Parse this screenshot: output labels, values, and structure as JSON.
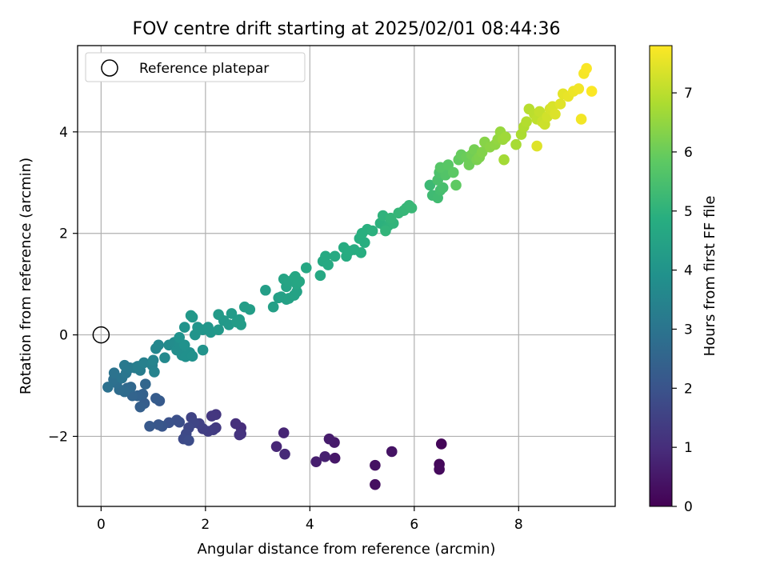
{
  "chart_data": {
    "type": "scatter",
    "title": "FOV centre drift starting at 2025/02/01 08:44:36",
    "xlabel": "Angular distance from reference (arcmin)",
    "ylabel": "Rotation from reference (arcmin)",
    "xlim": [
      -0.45,
      9.85
    ],
    "ylim": [
      -3.38,
      5.7
    ],
    "xticks": [
      0,
      2,
      4,
      6,
      8
    ],
    "yticks": [
      -2,
      0,
      2,
      4
    ],
    "ytick_labels": [
      "−2",
      "0",
      "2",
      "4"
    ],
    "grid": true,
    "colorbar": {
      "label": "Hours from first FF file",
      "colormap": "viridis",
      "range": [
        0,
        7.8
      ],
      "ticks": [
        0,
        1,
        2,
        3,
        4,
        5,
        6,
        7
      ]
    },
    "legend": {
      "position": "top-left",
      "entries": [
        {
          "label": "Reference platepar",
          "marker": "open-circle"
        }
      ]
    },
    "reference_point": {
      "x": 0,
      "y": 0
    },
    "colors": {
      "reference_marker": "#000000",
      "grid": "#b0b0b0"
    },
    "points": [
      [
        6.52,
        -2.15,
        0.1
      ],
      [
        6.48,
        -2.55,
        0.15
      ],
      [
        6.48,
        -2.65,
        0.2
      ],
      [
        5.25,
        -2.95,
        0.3
      ],
      [
        5.25,
        -2.57,
        0.35
      ],
      [
        5.57,
        -2.3,
        0.4
      ],
      [
        4.48,
        -2.43,
        0.5
      ],
      [
        4.47,
        -2.12,
        0.55
      ],
      [
        4.37,
        -2.05,
        0.6
      ],
      [
        4.12,
        -2.5,
        0.65
      ],
      [
        4.29,
        -2.4,
        0.7
      ],
      [
        3.5,
        -1.93,
        0.8
      ],
      [
        3.36,
        -2.2,
        0.85
      ],
      [
        3.52,
        -2.35,
        0.9
      ],
      [
        2.68,
        -1.83,
        1.0
      ],
      [
        2.58,
        -1.75,
        1.05
      ],
      [
        2.68,
        -1.95,
        1.1
      ],
      [
        2.65,
        -1.97,
        1.15
      ],
      [
        2.2,
        -1.57,
        1.2
      ],
      [
        2.12,
        -1.6,
        1.25
      ],
      [
        2.2,
        -1.83,
        1.3
      ],
      [
        2.15,
        -1.87,
        1.35
      ],
      [
        2.05,
        -1.9,
        1.4
      ],
      [
        1.95,
        -1.85,
        1.45
      ],
      [
        1.88,
        -1.75,
        1.5
      ],
      [
        1.73,
        -1.63,
        1.55
      ],
      [
        1.78,
        -1.73,
        1.6
      ],
      [
        1.68,
        -1.83,
        1.65
      ],
      [
        1.63,
        -1.95,
        1.7
      ],
      [
        1.58,
        -2.05,
        1.75
      ],
      [
        1.68,
        -2.08,
        1.8
      ],
      [
        1.5,
        -1.72,
        1.85
      ],
      [
        1.45,
        -1.68,
        1.9
      ],
      [
        1.3,
        -1.73,
        1.95
      ],
      [
        1.17,
        -1.8,
        2.05
      ],
      [
        1.1,
        -1.77,
        2.1
      ],
      [
        0.93,
        -1.8,
        2.15
      ],
      [
        1.12,
        -1.3,
        2.2
      ],
      [
        1.05,
        -1.25,
        2.25
      ],
      [
        0.83,
        -1.35,
        2.3
      ],
      [
        0.75,
        -1.42,
        2.35
      ],
      [
        0.8,
        -1.17,
        2.4
      ],
      [
        0.7,
        -1.2,
        2.45
      ],
      [
        0.6,
        -1.2,
        2.5
      ],
      [
        0.85,
        -0.97,
        2.55
      ],
      [
        0.57,
        -1.03,
        2.6
      ],
      [
        0.5,
        -1.05,
        2.65
      ],
      [
        0.45,
        -1.12,
        2.7
      ],
      [
        0.35,
        -1.08,
        2.75
      ],
      [
        0.3,
        -0.95,
        2.8
      ],
      [
        0.24,
        -0.88,
        2.85
      ],
      [
        0.13,
        -1.03,
        2.9
      ],
      [
        0.25,
        -0.75,
        2.95
      ],
      [
        0.4,
        -0.85,
        3.0
      ],
      [
        0.48,
        -0.75,
        3.05
      ],
      [
        0.55,
        -0.65,
        3.1
      ],
      [
        0.45,
        -0.6,
        3.15
      ],
      [
        0.65,
        -0.65,
        3.2
      ],
      [
        0.75,
        -0.7,
        3.25
      ],
      [
        0.7,
        -0.62,
        3.3
      ],
      [
        0.82,
        -0.55,
        3.35
      ],
      [
        0.98,
        -0.6,
        3.4
      ],
      [
        1.02,
        -0.73,
        3.45
      ],
      [
        1.0,
        -0.5,
        3.5
      ],
      [
        1.05,
        -0.27,
        3.55
      ],
      [
        1.1,
        -0.2,
        3.6
      ],
      [
        1.22,
        -0.45,
        3.65
      ],
      [
        1.3,
        -0.2,
        3.7
      ],
      [
        1.4,
        -0.15,
        3.75
      ],
      [
        1.45,
        -0.3,
        3.8
      ],
      [
        1.5,
        -0.18,
        3.82
      ],
      [
        1.55,
        -0.4,
        3.84
      ],
      [
        1.62,
        -0.43,
        3.86
      ],
      [
        1.7,
        -0.35,
        3.88
      ],
      [
        1.75,
        -0.42,
        3.9
      ],
      [
        1.6,
        -0.2,
        3.92
      ],
      [
        1.5,
        -0.05,
        3.94
      ],
      [
        1.6,
        0.15,
        3.96
      ],
      [
        1.95,
        -0.3,
        3.98
      ],
      [
        1.8,
        0.0,
        4.0
      ],
      [
        1.85,
        0.15,
        4.02
      ],
      [
        1.95,
        0.1,
        4.04
      ],
      [
        2.05,
        0.15,
        4.06
      ],
      [
        2.1,
        0.05,
        4.08
      ],
      [
        1.75,
        0.35,
        4.1
      ],
      [
        1.72,
        0.38,
        4.12
      ],
      [
        2.25,
        0.1,
        4.14
      ],
      [
        2.35,
        0.28,
        4.16
      ],
      [
        2.45,
        0.2,
        4.18
      ],
      [
        2.25,
        0.4,
        4.2
      ],
      [
        2.5,
        0.42,
        4.22
      ],
      [
        2.65,
        0.3,
        4.24
      ],
      [
        2.68,
        0.2,
        4.26
      ],
      [
        2.6,
        0.25,
        4.28
      ],
      [
        2.75,
        0.55,
        4.3
      ],
      [
        2.85,
        0.5,
        4.32
      ],
      [
        3.15,
        0.88,
        4.34
      ],
      [
        3.3,
        0.55,
        4.36
      ],
      [
        3.4,
        0.73,
        4.38
      ],
      [
        3.45,
        0.75,
        4.4
      ],
      [
        3.55,
        0.7,
        4.42
      ],
      [
        3.6,
        0.72,
        4.44
      ],
      [
        3.7,
        0.78,
        4.46
      ],
      [
        3.75,
        0.85,
        4.48
      ],
      [
        3.55,
        0.95,
        4.5
      ],
      [
        3.5,
        1.1,
        4.52
      ],
      [
        3.6,
        1.05,
        4.54
      ],
      [
        3.7,
        1.12,
        4.56
      ],
      [
        3.75,
        1.0,
        4.58
      ],
      [
        3.8,
        1.05,
        4.6
      ],
      [
        3.72,
        1.15,
        4.62
      ],
      [
        3.93,
        1.32,
        4.64
      ],
      [
        4.2,
        1.17,
        4.66
      ],
      [
        4.25,
        1.45,
        4.68
      ],
      [
        4.3,
        1.55,
        4.7
      ],
      [
        4.35,
        1.38,
        4.72
      ],
      [
        4.48,
        1.55,
        4.74
      ],
      [
        4.65,
        1.72,
        4.76
      ],
      [
        4.7,
        1.55,
        4.78
      ],
      [
        4.75,
        1.65,
        4.8
      ],
      [
        4.85,
        1.68,
        4.82
      ],
      [
        4.98,
        1.62,
        4.84
      ],
      [
        4.95,
        1.9,
        4.86
      ],
      [
        5.05,
        1.82,
        4.88
      ],
      [
        5.0,
        2.0,
        4.9
      ],
      [
        5.1,
        2.08,
        4.92
      ],
      [
        5.2,
        2.05,
        4.94
      ],
      [
        5.35,
        2.2,
        4.96
      ],
      [
        5.45,
        2.1,
        4.98
      ],
      [
        5.5,
        2.15,
        5.0
      ],
      [
        5.4,
        2.35,
        5.02
      ],
      [
        5.55,
        2.25,
        5.04
      ],
      [
        5.6,
        2.2,
        5.06
      ],
      [
        5.45,
        2.05,
        5.08
      ],
      [
        5.55,
        2.3,
        5.1
      ],
      [
        5.7,
        2.4,
        5.12
      ],
      [
        5.8,
        2.45,
        5.14
      ],
      [
        5.85,
        2.5,
        5.16
      ],
      [
        5.9,
        2.55,
        5.18
      ],
      [
        5.95,
        2.5,
        5.2
      ],
      [
        6.3,
        2.95,
        5.25
      ],
      [
        6.35,
        2.75,
        5.3
      ],
      [
        6.45,
        2.7,
        5.35
      ],
      [
        6.5,
        2.85,
        5.4
      ],
      [
        6.55,
        2.9,
        5.45
      ],
      [
        6.45,
        3.05,
        5.5
      ],
      [
        6.48,
        3.2,
        5.55
      ],
      [
        6.55,
        3.25,
        5.6
      ],
      [
        6.6,
        3.15,
        5.65
      ],
      [
        6.5,
        3.3,
        5.7
      ],
      [
        6.65,
        3.35,
        5.75
      ],
      [
        6.75,
        3.2,
        5.8
      ],
      [
        6.8,
        2.95,
        5.85
      ],
      [
        6.85,
        3.45,
        5.9
      ],
      [
        6.9,
        3.55,
        5.95
      ],
      [
        7.0,
        3.5,
        6.0
      ],
      [
        7.05,
        3.35,
        6.05
      ],
      [
        7.1,
        3.55,
        6.1
      ],
      [
        7.15,
        3.65,
        6.15
      ],
      [
        7.2,
        3.45,
        6.2
      ],
      [
        7.25,
        3.5,
        6.25
      ],
      [
        7.3,
        3.6,
        6.3
      ],
      [
        7.35,
        3.8,
        6.35
      ],
      [
        7.45,
        3.7,
        6.4
      ],
      [
        7.55,
        3.75,
        6.45
      ],
      [
        7.6,
        3.85,
        6.5
      ],
      [
        7.65,
        4.0,
        6.55
      ],
      [
        7.7,
        3.85,
        6.6
      ],
      [
        7.75,
        3.9,
        6.65
      ],
      [
        7.72,
        3.45,
        6.7
      ],
      [
        7.95,
        3.75,
        6.75
      ],
      [
        8.05,
        3.95,
        6.8
      ],
      [
        8.1,
        4.1,
        6.85
      ],
      [
        8.15,
        4.2,
        6.9
      ],
      [
        8.2,
        4.45,
        6.95
      ],
      [
        8.3,
        4.35,
        7.0
      ],
      [
        8.35,
        4.25,
        7.05
      ],
      [
        8.4,
        4.4,
        7.1
      ],
      [
        8.45,
        4.2,
        7.15
      ],
      [
        8.5,
        4.15,
        7.2
      ],
      [
        8.55,
        4.3,
        7.25
      ],
      [
        8.6,
        4.45,
        7.3
      ],
      [
        8.65,
        4.5,
        7.35
      ],
      [
        8.7,
        4.35,
        7.4
      ],
      [
        8.35,
        3.72,
        7.42
      ],
      [
        8.8,
        4.55,
        7.45
      ],
      [
        8.85,
        4.75,
        7.5
      ],
      [
        8.95,
        4.7,
        7.55
      ],
      [
        9.05,
        4.8,
        7.6
      ],
      [
        9.15,
        4.85,
        7.65
      ],
      [
        9.2,
        4.25,
        7.67
      ],
      [
        9.25,
        5.15,
        7.7
      ],
      [
        9.3,
        5.25,
        7.75
      ],
      [
        9.4,
        4.8,
        7.78
      ]
    ]
  }
}
